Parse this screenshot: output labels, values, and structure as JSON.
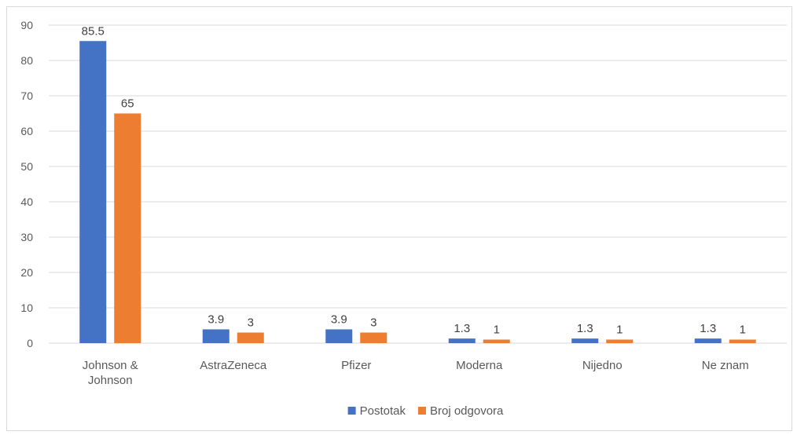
{
  "chart_data": {
    "type": "bar",
    "categories": [
      [
        "Johnson &",
        "Johnson"
      ],
      [
        "AstraZeneca"
      ],
      [
        "Pfizer"
      ],
      [
        "Moderna"
      ],
      [
        "Nijedno"
      ],
      [
        "Ne znam"
      ]
    ],
    "series": [
      {
        "name": "Postotak",
        "values": [
          85.5,
          3.9,
          3.9,
          1.3,
          1.3,
          1.3
        ],
        "labels": [
          "85.5",
          "3.9",
          "3.9",
          "1.3",
          "1.3",
          "1.3"
        ],
        "color": "#4472C4"
      },
      {
        "name": "Broj odgovora",
        "values": [
          65,
          3,
          3,
          1,
          1,
          1
        ],
        "labels": [
          "65",
          "3",
          "3",
          "1",
          "1",
          "1"
        ],
        "color": "#ED7D31"
      }
    ],
    "yticks": [
      "0",
      "10",
      "20",
      "30",
      "40",
      "50",
      "60",
      "70",
      "80",
      "90"
    ],
    "ylim": [
      0,
      90
    ],
    "grid": true,
    "legend_position": "bottom",
    "gridline_color": "#d9d9d9"
  }
}
